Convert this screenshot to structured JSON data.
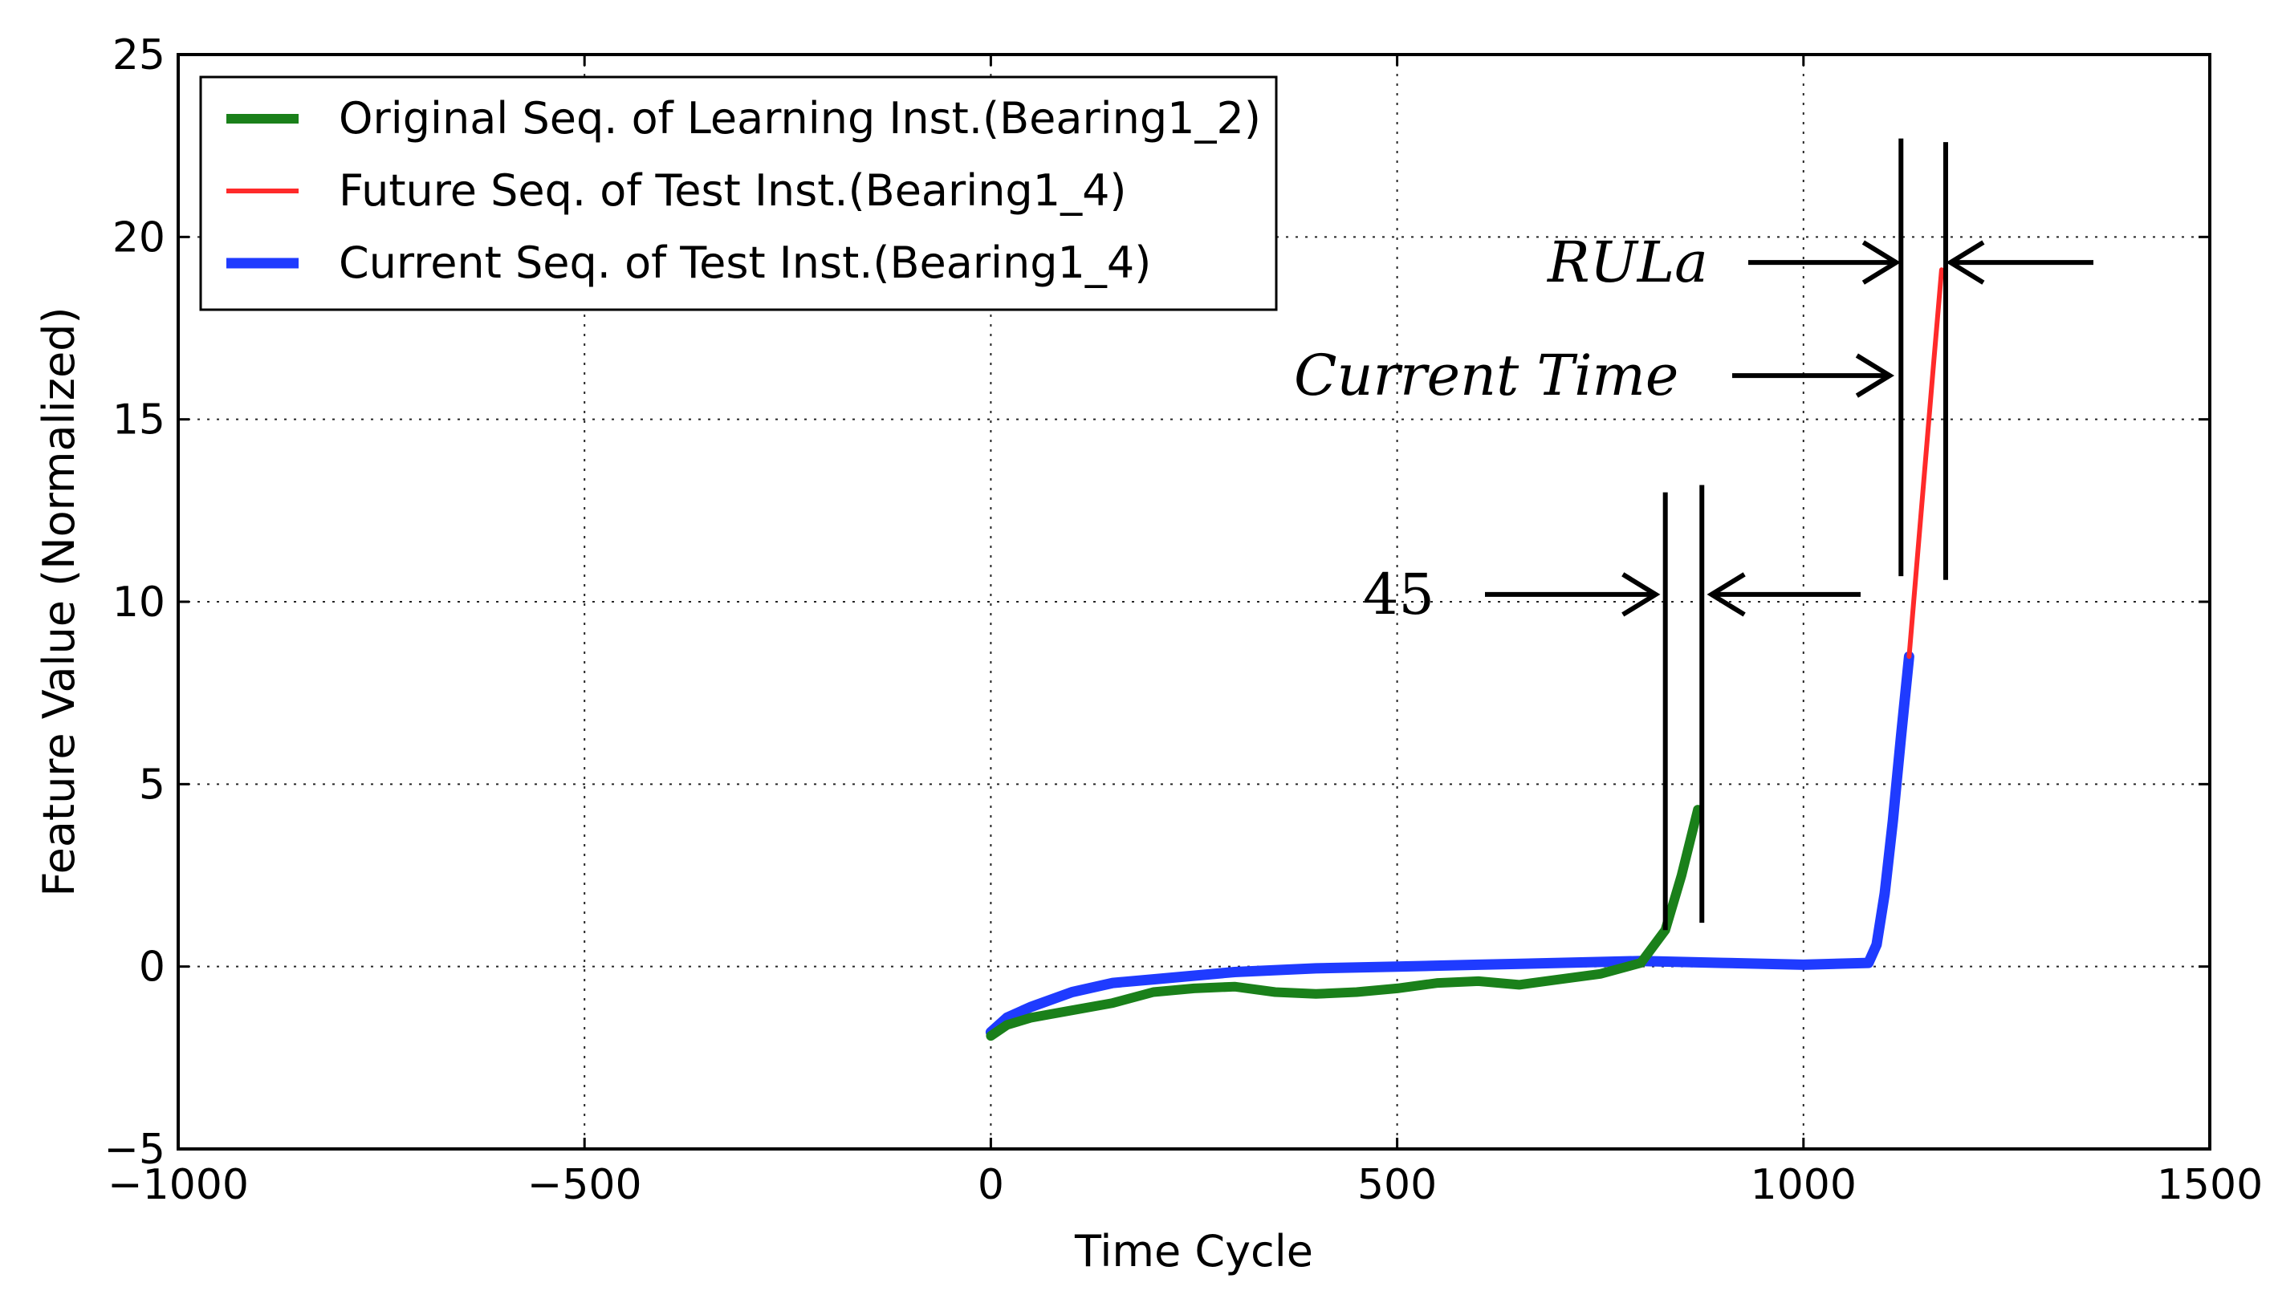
{
  "chart_data": {
    "type": "line",
    "title": "",
    "xlabel": "Time Cycle",
    "ylabel": "Feature Value (Normalized)",
    "xlim": [
      -1000,
      1500
    ],
    "ylim": [
      -5,
      25
    ],
    "xticks": [
      -1000,
      -500,
      0,
      500,
      1000,
      1500
    ],
    "xtick_labels": [
      "−1000",
      "−500",
      "0",
      "500",
      "1000",
      "1500"
    ],
    "yticks": [
      -5,
      0,
      5,
      10,
      15,
      20,
      25
    ],
    "ytick_labels": [
      "−5",
      "0",
      "5",
      "10",
      "15",
      "20",
      "25"
    ],
    "grid": true,
    "legend_position": "top-left",
    "series": [
      {
        "name": "Original Seq. of Learning Inst.(Bearing1_2)",
        "color": "#1a801a",
        "x": [
          0,
          20,
          50,
          100,
          150,
          200,
          250,
          300,
          350,
          400,
          450,
          500,
          550,
          600,
          650,
          700,
          750,
          800,
          830,
          850,
          870
        ],
        "y": [
          -1.9,
          -1.6,
          -1.4,
          -1.2,
          -1.0,
          -0.7,
          -0.6,
          -0.55,
          -0.7,
          -0.75,
          -0.7,
          -0.6,
          -0.45,
          -0.4,
          -0.5,
          -0.35,
          -0.2,
          0.1,
          1.0,
          2.5,
          4.3
        ]
      },
      {
        "name": "Future Seq. of Test Inst.(Bearing1_4)",
        "color": "#ff2a2a",
        "x": [
          1130,
          1145,
          1160,
          1170
        ],
        "y": [
          8.5,
          12.5,
          16.5,
          19.1
        ]
      },
      {
        "name": "Current Seq. of Test Inst.(Bearing1_4)",
        "color": "#1f3bff",
        "x": [
          0,
          20,
          50,
          100,
          150,
          200,
          300,
          400,
          500,
          600,
          700,
          800,
          900,
          1000,
          1080,
          1090,
          1100,
          1110,
          1120,
          1130
        ],
        "y": [
          -1.8,
          -1.4,
          -1.1,
          -0.7,
          -0.45,
          -0.35,
          -0.15,
          -0.05,
          0.0,
          0.05,
          0.1,
          0.15,
          0.1,
          0.05,
          0.1,
          0.6,
          2.0,
          4.0,
          6.3,
          8.5
        ]
      }
    ],
    "annotations": [
      {
        "text": "RULa",
        "italic": true
      },
      {
        "text": "Current Time",
        "italic": true
      },
      {
        "text": "45",
        "italic": false
      }
    ],
    "annotation_markers": {
      "green_end_x": 830,
      "green_end_plus_45_x": 875,
      "current_time_x": 1120,
      "end_of_life_x": 1175
    }
  }
}
